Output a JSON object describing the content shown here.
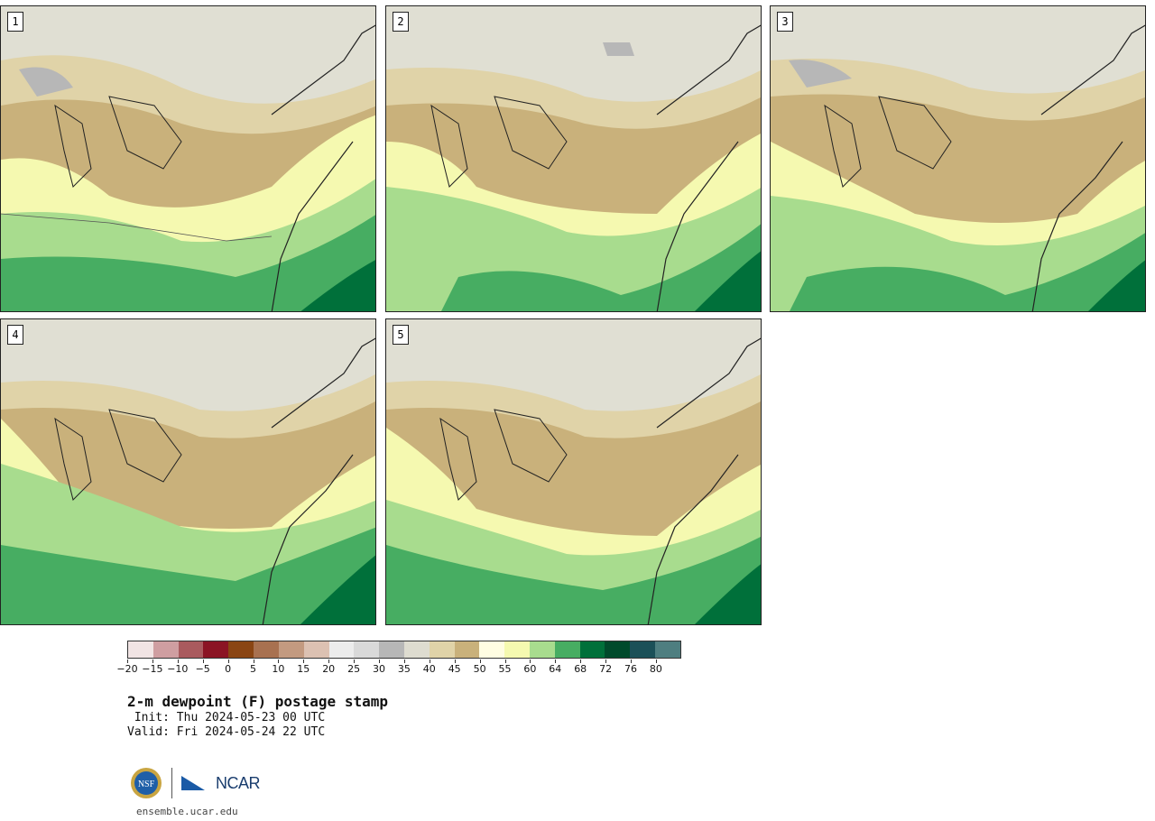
{
  "panels": [
    {
      "label": "1"
    },
    {
      "label": "2"
    },
    {
      "label": "3"
    },
    {
      "label": "4"
    },
    {
      "label": "5"
    }
  ],
  "colorbar": {
    "ticks": [
      "−20",
      "−15",
      "−10",
      "−5",
      "0",
      "5",
      "10",
      "15",
      "20",
      "25",
      "30",
      "35",
      "40",
      "45",
      "50",
      "55",
      "60",
      "64",
      "68",
      "72",
      "76",
      "80"
    ],
    "colors": [
      "#f1e4e4",
      "#cf9ea1",
      "#a95a5e",
      "#8b1424",
      "#8a4513",
      "#a87150",
      "#c39a80",
      "#dcc1b2",
      "#ececec",
      "#d9d9d9",
      "#b7b7b7",
      "#dedcd0",
      "#e0d3a8",
      "#c9b17b",
      "#fffde2",
      "#f5f9b0",
      "#a8dc8e",
      "#47ad62",
      "#00703a",
      "#004a2b",
      "#1b5058",
      "#4e7e80"
    ]
  },
  "title": {
    "main": "2-m dewpoint (F) postage stamp",
    "init": " Init: Thu 2024-05-23 00 UTC",
    "valid": "Valid: Fri 2024-05-24 22 UTC"
  },
  "logo": {
    "ncar": "NCAR",
    "nsf": "NSF"
  },
  "footer": {
    "url": "ensemble.ucar.edu"
  }
}
